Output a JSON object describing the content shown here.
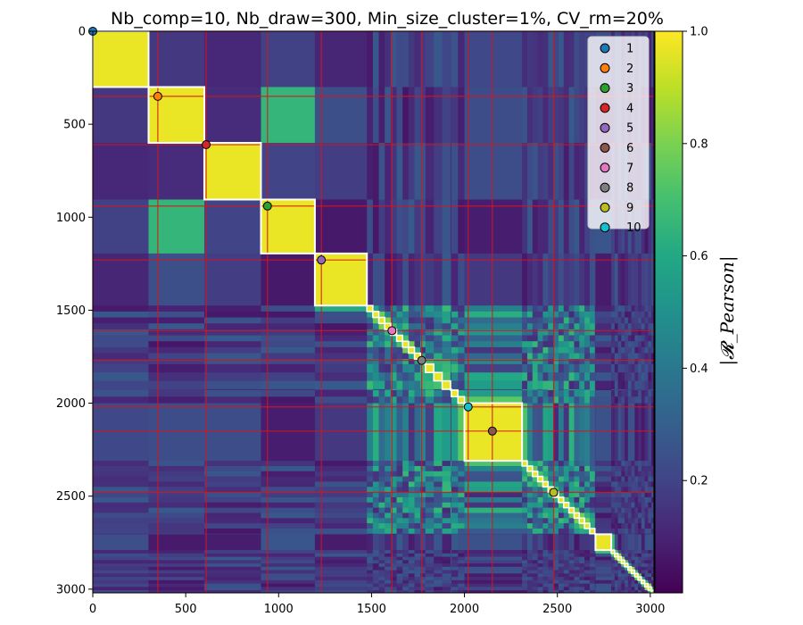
{
  "chart_data": {
    "type": "heatmap",
    "title": "Nb_comp=10, Nb_draw=300, Min_size_cluster=1%, CV_rm=20%",
    "xlim": [
      0,
      3020
    ],
    "ylim": [
      3020,
      0
    ],
    "x_ticks": [
      0,
      500,
      1000,
      1500,
      2000,
      2500,
      3000
    ],
    "y_ticks": [
      0,
      500,
      1000,
      1500,
      2000,
      2500,
      3000
    ],
    "colorbar": {
      "label": "|𝓡_Pearson|",
      "colormap": "viridis",
      "range": [
        0.0,
        1.0
      ],
      "ticks": [
        0.2,
        0.4,
        0.6,
        0.8,
        1.0
      ],
      "tick_labels": [
        "0.2",
        "0.4",
        "0.6",
        "0.8",
        "1.0"
      ]
    },
    "red_lines": [
      0,
      350,
      610,
      940,
      1230,
      1610,
      1770,
      2020,
      2150,
      2480
    ],
    "big_clusters": [
      {
        "start": 0,
        "end": 300
      },
      {
        "start": 300,
        "end": 600
      },
      {
        "start": 600,
        "end": 905
      },
      {
        "start": 905,
        "end": 1195
      },
      {
        "start": 1195,
        "end": 1475
      },
      {
        "start": 2000,
        "end": 2310
      },
      {
        "start": 2705,
        "end": 2790
      }
    ],
    "small_cluster_ranges": [
      {
        "start": 1475,
        "end": 1790,
        "step": 32
      },
      {
        "start": 1790,
        "end": 1930,
        "step": 45
      },
      {
        "start": 1930,
        "end": 2000,
        "step": 35
      },
      {
        "start": 2310,
        "end": 2705,
        "step": 28
      },
      {
        "start": 2790,
        "end": 3020,
        "step": 18
      }
    ],
    "legend": {
      "position": "upper right",
      "entries": [
        {
          "label": "1",
          "color": "#1f77b4",
          "x": 0,
          "y": 0
        },
        {
          "label": "2",
          "color": "#ff7f0e",
          "x": 350,
          "y": 350
        },
        {
          "label": "3",
          "color": "#2ca02c",
          "x": 940,
          "y": 940
        },
        {
          "label": "4",
          "color": "#d62728",
          "x": 610,
          "y": 610
        },
        {
          "label": "5",
          "color": "#9467bd",
          "x": 1230,
          "y": 1230
        },
        {
          "label": "6",
          "color": "#8c564b",
          "x": 2150,
          "y": 2150
        },
        {
          "label": "7",
          "color": "#e377c2",
          "x": 1610,
          "y": 1610
        },
        {
          "label": "8",
          "color": "#7f7f7f",
          "x": 1770,
          "y": 1770
        },
        {
          "label": "9",
          "color": "#bcbd22",
          "x": 2480,
          "y": 2480
        },
        {
          "label": "10",
          "color": "#17becf",
          "x": 2020,
          "y": 2020
        }
      ]
    }
  }
}
